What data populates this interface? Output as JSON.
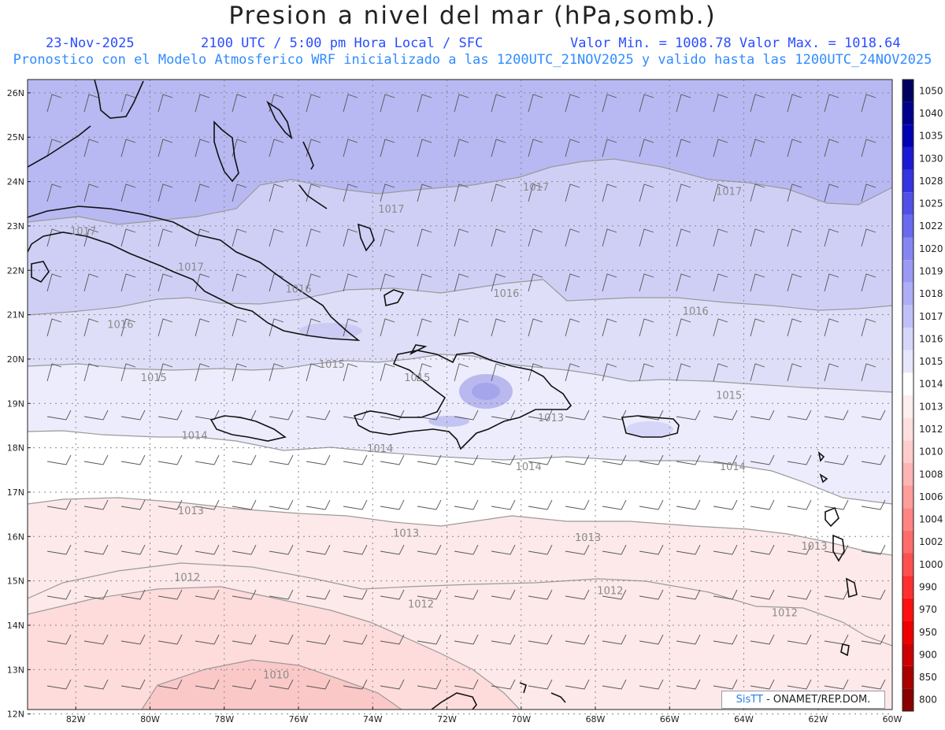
{
  "header": {
    "title": "Presion a nivel del mar (hPa,somb.)",
    "date": "23-Nov-2025",
    "time": "2100 UTC / 5:00 pm Hora Local / SFC",
    "min_max": "Valor Min. = 1008.78  Valor Max. = 1018.64",
    "description": "Pronostico con el Modelo Atmosferico WRF inicializado a las 1200UTC_21NOV2025 y valido hasta las  1200UTC_24NOV2025"
  },
  "map": {
    "lat_labels": [
      "26N",
      "25N",
      "24N",
      "23N",
      "22N",
      "21N",
      "20N",
      "19N",
      "18N",
      "17N",
      "16N",
      "15N",
      "14N",
      "13N",
      "12N"
    ],
    "lon_labels": [
      "82W",
      "80W",
      "78W",
      "76W",
      "74W",
      "72W",
      "70W",
      "68W",
      "66W",
      "64W",
      "62W",
      "60W"
    ],
    "contour_labels": [
      {
        "text": "1017",
        "lon": -81.8,
        "lat": 22.8
      },
      {
        "text": "1017",
        "lon": -78.9,
        "lat": 22.0
      },
      {
        "text": "1017",
        "lon": -73.5,
        "lat": 23.3
      },
      {
        "text": "1017",
        "lon": -69.6,
        "lat": 23.8
      },
      {
        "text": "1017",
        "lon": -64.4,
        "lat": 23.7
      },
      {
        "text": "1016",
        "lon": -80.8,
        "lat": 20.7
      },
      {
        "text": "1016",
        "lon": -76.0,
        "lat": 21.5
      },
      {
        "text": "1016",
        "lon": -70.4,
        "lat": 21.4
      },
      {
        "text": "1016",
        "lon": -65.3,
        "lat": 21.0
      },
      {
        "text": "1015",
        "lon": -79.9,
        "lat": 19.5
      },
      {
        "text": "1015",
        "lon": -75.1,
        "lat": 19.8
      },
      {
        "text": "1015",
        "lon": -72.8,
        "lat": 19.5
      },
      {
        "text": "1015",
        "lon": -64.4,
        "lat": 19.1
      },
      {
        "text": "1014",
        "lon": -78.8,
        "lat": 18.2
      },
      {
        "text": "1014",
        "lon": -73.8,
        "lat": 17.9
      },
      {
        "text": "1014",
        "lon": -69.8,
        "lat": 17.5
      },
      {
        "text": "1014",
        "lon": -64.3,
        "lat": 17.5
      },
      {
        "text": "1013",
        "lon": -69.2,
        "lat": 18.6
      },
      {
        "text": "1013",
        "lon": -78.9,
        "lat": 16.5
      },
      {
        "text": "1013",
        "lon": -73.1,
        "lat": 16.0
      },
      {
        "text": "1013",
        "lon": -68.2,
        "lat": 15.9
      },
      {
        "text": "1013",
        "lon": -62.1,
        "lat": 15.7
      },
      {
        "text": "1012",
        "lon": -79.0,
        "lat": 15.0
      },
      {
        "text": "1012",
        "lon": -72.7,
        "lat": 14.4
      },
      {
        "text": "1012",
        "lon": -67.6,
        "lat": 14.7
      },
      {
        "text": "1012",
        "lon": -62.9,
        "lat": 14.2
      },
      {
        "text": "1010",
        "lon": -76.6,
        "lat": 12.8
      }
    ],
    "colorbar_labels": [
      "1050",
      "1040",
      "1035",
      "1030",
      "1028",
      "1025",
      "1022",
      "1020",
      "1019",
      "1018",
      "1017",
      "1016",
      "1015",
      "1014",
      "1013",
      "1012",
      "1010",
      "1008",
      "1006",
      "1004",
      "1002",
      "1000",
      "990",
      "970",
      "950",
      "900",
      "850",
      "800"
    ],
    "colorbar_colors": [
      "#000060",
      "#00008b",
      "#0000b4",
      "#1a1ad4",
      "#3434e0",
      "#5050e8",
      "#6a6aee",
      "#8686f2",
      "#9a9af4",
      "#aeaef6",
      "#c0c0f8",
      "#d6d6fa",
      "#e6e6fc",
      "#ffffff",
      "#ffeeee",
      "#ffdede",
      "#ffcccc",
      "#ffb4b4",
      "#ff9c9c",
      "#ff8484",
      "#ff6c6c",
      "#ff5050",
      "#ff3030",
      "#ff1010",
      "#ee0000",
      "#cc0000",
      "#aa0000",
      "#880000"
    ]
  },
  "credit": {
    "brand": "SisTT",
    "text": " - ONAMET/REP.DOM."
  }
}
